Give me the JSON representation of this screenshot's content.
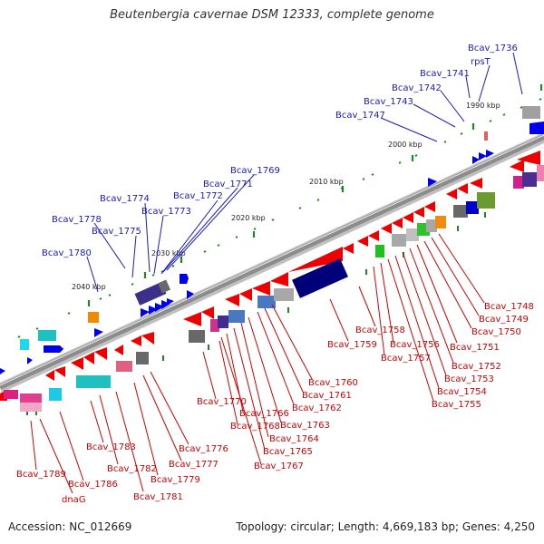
{
  "title": "Beutenbergia cavernae DSM 12333, complete genome",
  "accession": "Accession: NC_012669",
  "stats": "Topology: circular; Length: 4,669,183 bp; Genes: 4,250",
  "scale_labels": [
    "1990 kbp",
    "2000 kbp",
    "2010 kbp",
    "2020 kbp",
    "2030 kbp",
    "2040 kbp"
  ],
  "top_genes": [
    "Bcav_1736",
    "rpsT",
    "Bcav_1741",
    "Bcav_1742",
    "Bcav_1743",
    "Bcav_1747",
    "Bcav_1769",
    "Bcav_1771",
    "Bcav_1772",
    "Bcav_1774",
    "Bcav_1773",
    "Bcav_1778",
    "Bcav_1775",
    "Bcav_1780"
  ],
  "bottom_genes": [
    "Bcav_1748",
    "Bcav_1749",
    "Bcav_1750",
    "Bcav_1751",
    "Bcav_1752",
    "Bcav_1753",
    "Bcav_1754",
    "Bcav_1755",
    "Bcav_1756",
    "Bcav_1757",
    "Bcav_1758",
    "Bcav_1759",
    "Bcav_1760",
    "Bcav_1761",
    "Bcav_1762",
    "Bcav_1763",
    "Bcav_1764",
    "Bcav_1765",
    "Bcav_1766",
    "Bcav_1767",
    "Bcav_1768",
    "Bcav_1770",
    "Bcav_1776",
    "Bcav_1777",
    "Bcav_1779",
    "Bcav_1781",
    "Bcav_1782",
    "Bcav_1783",
    "Bcav_1786",
    "Bcav_1789",
    "dnaG"
  ],
  "colors": {
    "forward_label": "#1a1ac8",
    "reverse_label": "#d10000",
    "forward_gene": "#0000ee",
    "reverse_gene": "#ee0000",
    "backbone": "#8c8c8c"
  }
}
